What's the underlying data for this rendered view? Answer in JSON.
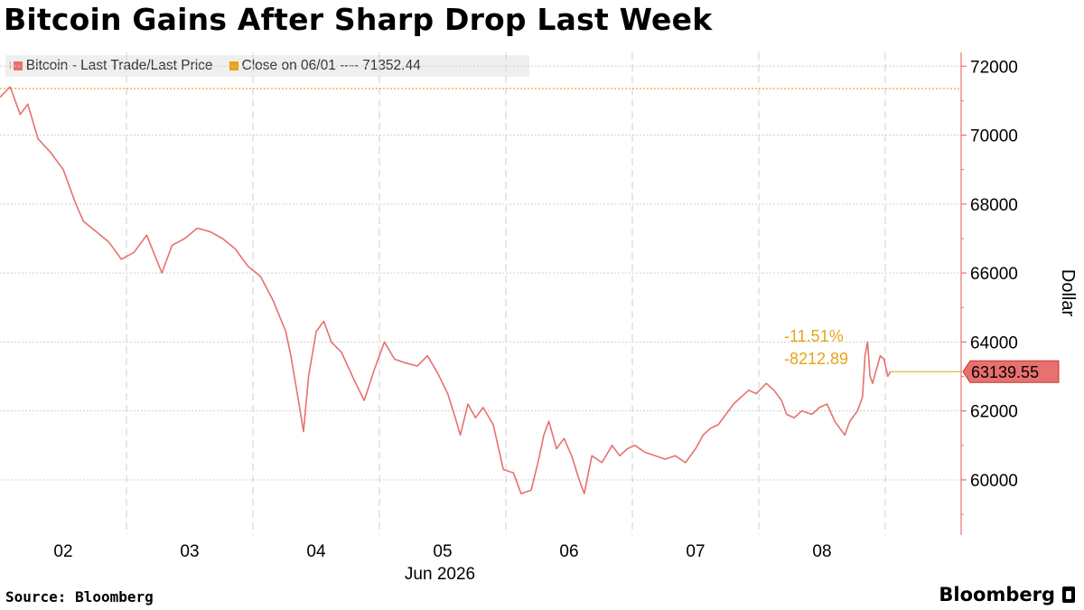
{
  "chart_data": {
    "type": "line",
    "title": "Bitcoin Gains After Sharp Drop Last Week",
    "legend": [
      {
        "name": "Bitcoin - Last Trade/Last Price",
        "color": "#e8706f"
      },
      {
        "name": "Close on 06/01 ---- 71352.44",
        "color": "#e8a317"
      }
    ],
    "ylabel": "Dollar",
    "ylim": [
      58400,
      72400
    ],
    "yticks": [
      "60000",
      "62000",
      "64000",
      "66000",
      "68000",
      "70000",
      "72000"
    ],
    "xlim": [
      1.5,
      9.1
    ],
    "xticks": [
      {
        "x": 2,
        "label": "02"
      },
      {
        "x": 3,
        "label": "03"
      },
      {
        "x": 4,
        "label": "04"
      },
      {
        "x": 5,
        "label": "05"
      },
      {
        "x": 6,
        "label": "06"
      },
      {
        "x": 7,
        "label": "07"
      },
      {
        "x": 8,
        "label": "08"
      }
    ],
    "xaxis_sublabel": "Jun 2026",
    "grid": true,
    "reference_line": {
      "label": "Close on 06/01",
      "value": 71352.44
    },
    "last_price": {
      "value": 63139.55,
      "label": "63139.55"
    },
    "change_annotations": [
      "-11.51%",
      "-8212.89"
    ],
    "series": [
      {
        "name": "Bitcoin - Last Trade/Last Price",
        "color": "#e8706f",
        "points": [
          [
            1.5,
            71100
          ],
          [
            1.58,
            71400
          ],
          [
            1.66,
            70600
          ],
          [
            1.72,
            70900
          ],
          [
            1.8,
            69900
          ],
          [
            1.9,
            69500
          ],
          [
            2.0,
            69000
          ],
          [
            2.1,
            68000
          ],
          [
            2.16,
            67500
          ],
          [
            2.26,
            67200
          ],
          [
            2.36,
            66900
          ],
          [
            2.46,
            66400
          ],
          [
            2.56,
            66600
          ],
          [
            2.66,
            67100
          ],
          [
            2.78,
            66000
          ],
          [
            2.86,
            66800
          ],
          [
            2.96,
            67000
          ],
          [
            3.06,
            67300
          ],
          [
            3.16,
            67200
          ],
          [
            3.26,
            67000
          ],
          [
            3.36,
            66700
          ],
          [
            3.46,
            66200
          ],
          [
            3.56,
            65900
          ],
          [
            3.66,
            65200
          ],
          [
            3.76,
            64300
          ],
          [
            3.8,
            63600
          ],
          [
            3.86,
            62300
          ],
          [
            3.9,
            61400
          ],
          [
            3.94,
            63000
          ],
          [
            4.0,
            64300
          ],
          [
            4.06,
            64600
          ],
          [
            4.12,
            64000
          ],
          [
            4.2,
            63700
          ],
          [
            4.3,
            62900
          ],
          [
            4.38,
            62300
          ],
          [
            4.46,
            63200
          ],
          [
            4.54,
            64000
          ],
          [
            4.62,
            63500
          ],
          [
            4.7,
            63400
          ],
          [
            4.8,
            63300
          ],
          [
            4.88,
            63600
          ],
          [
            4.96,
            63100
          ],
          [
            5.04,
            62500
          ],
          [
            5.1,
            61800
          ],
          [
            5.14,
            61300
          ],
          [
            5.2,
            62200
          ],
          [
            5.26,
            61800
          ],
          [
            5.32,
            62100
          ],
          [
            5.4,
            61600
          ],
          [
            5.48,
            60300
          ],
          [
            5.56,
            60200
          ],
          [
            5.62,
            59600
          ],
          [
            5.7,
            59700
          ],
          [
            5.76,
            60600
          ],
          [
            5.8,
            61300
          ],
          [
            5.84,
            61700
          ],
          [
            5.9,
            60900
          ],
          [
            5.96,
            61200
          ],
          [
            6.02,
            60700
          ],
          [
            6.08,
            60000
          ],
          [
            6.12,
            59600
          ],
          [
            6.18,
            60700
          ],
          [
            6.26,
            60500
          ],
          [
            6.34,
            61000
          ],
          [
            6.4,
            60700
          ],
          [
            6.46,
            60900
          ],
          [
            6.52,
            61000
          ],
          [
            6.6,
            60800
          ],
          [
            6.68,
            60700
          ],
          [
            6.76,
            60600
          ],
          [
            6.84,
            60700
          ],
          [
            6.92,
            60500
          ],
          [
            7.0,
            60900
          ],
          [
            7.06,
            61300
          ],
          [
            7.12,
            61500
          ],
          [
            7.18,
            61600
          ],
          [
            7.24,
            61900
          ],
          [
            7.3,
            62200
          ],
          [
            7.36,
            62400
          ],
          [
            7.42,
            62600
          ],
          [
            7.48,
            62500
          ],
          [
            7.56,
            62800
          ],
          [
            7.62,
            62600
          ],
          [
            7.68,
            62300
          ],
          [
            7.72,
            61900
          ],
          [
            7.78,
            61800
          ],
          [
            7.84,
            62000
          ],
          [
            7.92,
            61900
          ],
          [
            7.98,
            62100
          ],
          [
            8.04,
            62200
          ],
          [
            8.1,
            61700
          ],
          [
            8.14,
            61500
          ],
          [
            8.18,
            61300
          ],
          [
            8.22,
            61700
          ],
          [
            8.28,
            62000
          ],
          [
            8.32,
            62400
          ],
          [
            8.34,
            63600
          ],
          [
            8.36,
            64000
          ],
          [
            8.38,
            63000
          ],
          [
            8.4,
            62800
          ],
          [
            8.43,
            63200
          ],
          [
            8.46,
            63600
          ],
          [
            8.49,
            63500
          ],
          [
            8.52,
            63000
          ],
          [
            8.54,
            63140
          ]
        ]
      }
    ]
  }
}
